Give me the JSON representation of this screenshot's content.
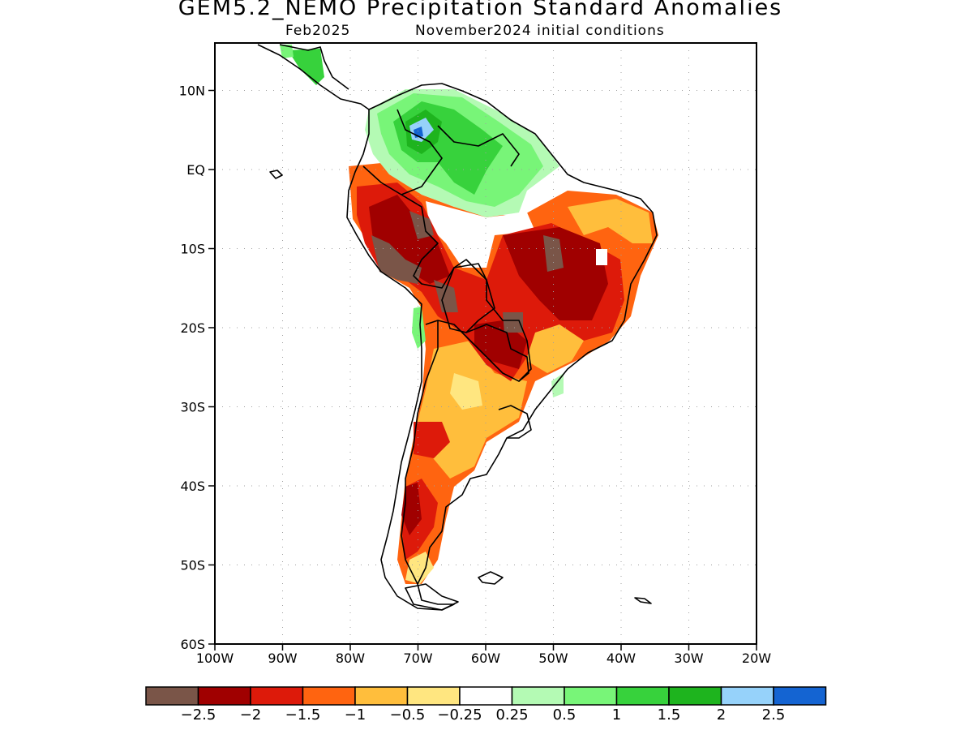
{
  "title": "GEM5.2_NEMO Precipitation Standard Anomalies",
  "subtitle_left": "Feb2025",
  "subtitle_right": "November2024 initial conditions",
  "axes": {
    "lat_ticks": [
      "10N",
      "EQ",
      "10S",
      "20S",
      "30S",
      "40S",
      "50S",
      "60S"
    ],
    "lon_ticks": [
      "100W",
      "90W",
      "80W",
      "70W",
      "60W",
      "50W",
      "40W",
      "30W",
      "20W"
    ],
    "lat_range": [
      -60,
      16
    ],
    "lon_range": [
      -100,
      -20
    ],
    "grid": true
  },
  "colorbar": {
    "colors": [
      "#7a5548",
      "#a00000",
      "#dd1a0a",
      "#ff6410",
      "#ffbe3c",
      "#ffe680",
      "#ffffff",
      "#b4fab4",
      "#78f578",
      "#37d23c",
      "#1eb41e",
      "#96d2fa",
      "#1464d2"
    ],
    "labels": [
      "−2.5",
      "−2",
      "−1.5",
      "−1",
      "−0.5",
      "−0.25",
      "0.25",
      "0.5",
      "1",
      "1.5",
      "2",
      "2.5"
    ]
  },
  "regions_legend": {
    "brown": "#7a5548",
    "dark_red": "#a00000",
    "red": "#dd1a0a",
    "orange": "#ff6410",
    "light_orange": "#ffbe3c",
    "yellow": "#ffe680",
    "light_green": "#b4fab4",
    "green": "#78f578",
    "mid_green": "#37d23c",
    "dark_green": "#1eb41e",
    "light_blue": "#96d2fa",
    "blue": "#1464d2"
  }
}
